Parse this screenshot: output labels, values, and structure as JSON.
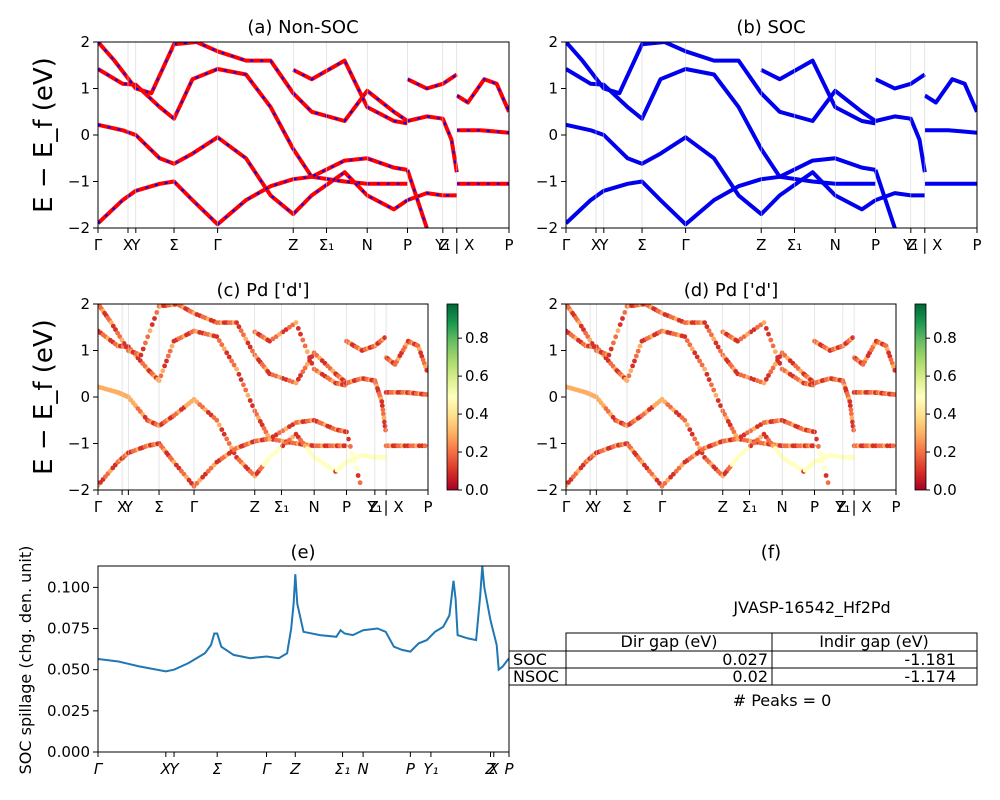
{
  "figure": {
    "ylabel_top": "E − E_f (eV)",
    "ylabel_mid": "E − E_f (eV)"
  },
  "chart_data": [
    {
      "id": "a",
      "type": "line",
      "title": "(a) Non-SOC",
      "ylim": [
        -2,
        2
      ],
      "yticks": [
        "2",
        "1",
        "0",
        "−1",
        "−2"
      ],
      "xticklabels": [
        "Γ",
        "X",
        "Y",
        "Σ",
        "Γ",
        "Z",
        "Σ₁",
        "N",
        "P",
        "Y₁",
        "Z | X",
        "P"
      ],
      "xticks_at": [
        0,
        0.073,
        0.092,
        0.185,
        0.291,
        0.475,
        0.556,
        0.655,
        0.753,
        0.839,
        0.873,
        1.0
      ],
      "series": [
        {
          "values": [
            [
              0,
              1.42
            ],
            [
              0.06,
              1.1
            ],
            [
              0.092,
              1.08
            ],
            [
              0.15,
              0.6
            ],
            [
              0.185,
              0.35
            ],
            [
              0.23,
              1.2
            ],
            [
              0.291,
              1.42
            ],
            [
              0.36,
              1.3
            ],
            [
              0.42,
              0.6
            ],
            [
              0.475,
              -0.3
            ],
            [
              0.52,
              -0.9
            ],
            [
              0.6,
              -1.0
            ],
            [
              0.655,
              -1.05
            ],
            [
              0.72,
              -1.05
            ],
            [
              0.753,
              -1.05
            ]
          ]
        },
        {
          "values": [
            [
              0,
              0.22
            ],
            [
              0.06,
              0.1
            ],
            [
              0.092,
              0.0
            ],
            [
              0.15,
              -0.5
            ],
            [
              0.185,
              -0.62
            ],
            [
              0.23,
              -0.4
            ],
            [
              0.291,
              -0.05
            ],
            [
              0.36,
              -0.5
            ],
            [
              0.42,
              -1.3
            ],
            [
              0.475,
              -1.7
            ],
            [
              0.52,
              -1.3
            ],
            [
              0.6,
              -0.8
            ],
            [
              0.655,
              -1.3
            ],
            [
              0.72,
              -1.6
            ],
            [
              0.753,
              -1.4
            ]
          ]
        },
        {
          "values": [
            [
              0,
              -1.9
            ],
            [
              0.06,
              -1.4
            ],
            [
              0.092,
              -1.2
            ],
            [
              0.15,
              -1.05
            ],
            [
              0.185,
              -1.0
            ],
            [
              0.23,
              -1.4
            ],
            [
              0.291,
              -1.92
            ],
            [
              0.36,
              -1.4
            ],
            [
              0.42,
              -1.1
            ],
            [
              0.475,
              -0.95
            ],
            [
              0.52,
              -0.9
            ],
            [
              0.6,
              -0.55
            ],
            [
              0.655,
              -0.5
            ],
            [
              0.72,
              -0.7
            ],
            [
              0.753,
              -0.75
            ]
          ]
        },
        {
          "values": [
            [
              0,
              2.0
            ],
            [
              0.04,
              1.6
            ],
            [
              0.092,
              1.0
            ],
            [
              0.13,
              0.9
            ],
            [
              0.185,
              1.95
            ],
            [
              0.24,
              2.0
            ],
            [
              0.291,
              1.8
            ],
            [
              0.36,
              1.6
            ],
            [
              0.42,
              1.6
            ],
            [
              0.475,
              0.9
            ],
            [
              0.52,
              0.5
            ],
            [
              0.6,
              0.3
            ],
            [
              0.655,
              0.95
            ],
            [
              0.72,
              0.5
            ],
            [
              0.753,
              0.3
            ]
          ]
        },
        {
          "values": [
            [
              0.475,
              1.4
            ],
            [
              0.52,
              1.2
            ],
            [
              0.6,
              1.6
            ],
            [
              0.655,
              0.6
            ],
            [
              0.72,
              0.3
            ],
            [
              0.753,
              0.25
            ]
          ]
        },
        {
          "values": [
            [
              0.873,
              0.1
            ],
            [
              0.93,
              0.1
            ],
            [
              0.96,
              0.08
            ],
            [
              1.0,
              0.05
            ]
          ]
        },
        {
          "values": [
            [
              0.873,
              -1.05
            ],
            [
              0.93,
              -1.05
            ],
            [
              1.0,
              -1.05
            ]
          ]
        },
        {
          "values": [
            [
              0.873,
              0.85
            ],
            [
              0.9,
              0.7
            ],
            [
              0.94,
              1.2
            ],
            [
              0.97,
              1.1
            ],
            [
              1.0,
              0.5
            ]
          ]
        },
        {
          "values": [
            [
              0.753,
              0.3
            ],
            [
              0.8,
              0.4
            ],
            [
              0.839,
              0.35
            ],
            [
              0.86,
              -0.1
            ],
            [
              0.873,
              -0.8
            ]
          ]
        },
        {
          "values": [
            [
              0.753,
              -1.4
            ],
            [
              0.8,
              -1.25
            ],
            [
              0.839,
              -1.3
            ],
            [
              0.873,
              -1.3
            ]
          ]
        },
        {
          "values": [
            [
              0.753,
              -0.75
            ],
            [
              0.8,
              -2.0
            ]
          ]
        },
        {
          "values": [
            [
              0.753,
              1.2
            ],
            [
              0.8,
              1.0
            ],
            [
              0.839,
              1.1
            ],
            [
              0.873,
              1.3
            ]
          ]
        }
      ]
    },
    {
      "id": "b",
      "type": "line",
      "title": "(b) SOC",
      "ylim": [
        -2,
        2
      ],
      "yticks": [
        "2",
        "1",
        "0",
        "−1",
        "−2"
      ],
      "xticklabels": [
        "Γ",
        "X",
        "Y",
        "Σ",
        "Γ",
        "Z",
        "Σ₁",
        "N",
        "P",
        "Y₁",
        "Z | X",
        "P"
      ],
      "xticks_at": [
        0,
        0.073,
        0.092,
        0.185,
        0.291,
        0.475,
        0.556,
        0.655,
        0.753,
        0.839,
        0.873,
        1.0
      ],
      "series_ref": "a"
    },
    {
      "id": "c",
      "type": "scatter",
      "title": "(c)  Pd ['d']",
      "ylim": [
        -2,
        2
      ],
      "yticks": [
        "2",
        "1",
        "0",
        "−1",
        "−2"
      ],
      "xticklabels": [
        "Γ",
        "X",
        "Y",
        "Σ",
        "Γ",
        "Z",
        "Σ₁",
        "N",
        "P",
        "Y₁",
        "Z | X",
        "P"
      ],
      "xticks_at": [
        0,
        0.073,
        0.092,
        0.185,
        0.291,
        0.475,
        0.556,
        0.655,
        0.753,
        0.839,
        0.873,
        1.0
      ],
      "colorbar_ticks": [
        "0.8",
        "0.6",
        "0.4",
        "0.2",
        "0.0"
      ],
      "series_ref": "a"
    },
    {
      "id": "d",
      "type": "scatter",
      "title": "(d) Pd ['d']",
      "ylim": [
        -2,
        2
      ],
      "yticks": [
        "2",
        "1",
        "0",
        "−1",
        "−2"
      ],
      "xticklabels": [
        "Γ",
        "X",
        "Y",
        "Σ",
        "Γ",
        "Z",
        "Σ₁",
        "N",
        "P",
        "Y₁",
        "Z | X",
        "P"
      ],
      "xticks_at": [
        0,
        0.073,
        0.092,
        0.185,
        0.291,
        0.475,
        0.556,
        0.655,
        0.753,
        0.839,
        0.873,
        1.0
      ],
      "colorbar_ticks": [
        "0.8",
        "0.6",
        "0.4",
        "0.2",
        "0.0"
      ],
      "series_ref": "a"
    },
    {
      "id": "e",
      "type": "line",
      "title": "(e)",
      "ylabel": "SOC spillage (chg. den. unit)",
      "ylim": [
        0,
        0.113
      ],
      "yticks": [
        0.0,
        0.025,
        0.05,
        0.075,
        0.1
      ],
      "ytick_labels": [
        "0.000",
        "0.025",
        "0.050",
        "0.075",
        "0.100"
      ],
      "xticklabels": [
        "Γ",
        "X",
        "Y",
        "Σ",
        "Γ",
        "Z",
        "Σ₁",
        "N",
        "P",
        "Y₁",
        "Z",
        "X",
        "P"
      ],
      "xticks_at": [
        0,
        0.165,
        0.185,
        0.29,
        0.41,
        0.48,
        0.595,
        0.645,
        0.76,
        0.81,
        0.955,
        0.963,
        1.0
      ],
      "series": [
        {
          "color": "#1f77b4",
          "values": [
            [
              0,
              0.0565
            ],
            [
              0.05,
              0.055
            ],
            [
              0.1,
              0.052
            ],
            [
              0.165,
              0.049
            ],
            [
              0.185,
              0.05
            ],
            [
              0.22,
              0.054
            ],
            [
              0.26,
              0.06
            ],
            [
              0.275,
              0.065
            ],
            [
              0.283,
              0.072
            ],
            [
              0.29,
              0.072
            ],
            [
              0.3,
              0.064
            ],
            [
              0.33,
              0.059
            ],
            [
              0.37,
              0.057
            ],
            [
              0.41,
              0.058
            ],
            [
              0.44,
              0.057
            ],
            [
              0.46,
              0.06
            ],
            [
              0.47,
              0.075
            ],
            [
              0.476,
              0.09
            ],
            [
              0.48,
              0.108
            ],
            [
              0.485,
              0.09
            ],
            [
              0.5,
              0.073
            ],
            [
              0.54,
              0.071
            ],
            [
              0.58,
              0.07
            ],
            [
              0.59,
              0.074
            ],
            [
              0.6,
              0.072
            ],
            [
              0.62,
              0.071
            ],
            [
              0.645,
              0.074
            ],
            [
              0.68,
              0.075
            ],
            [
              0.7,
              0.073
            ],
            [
              0.72,
              0.064
            ],
            [
              0.74,
              0.062
            ],
            [
              0.76,
              0.061
            ],
            [
              0.78,
              0.066
            ],
            [
              0.8,
              0.068
            ],
            [
              0.82,
              0.073
            ],
            [
              0.84,
              0.076
            ],
            [
              0.855,
              0.083
            ],
            [
              0.865,
              0.104
            ],
            [
              0.87,
              0.093
            ],
            [
              0.875,
              0.071
            ],
            [
              0.9,
              0.069
            ],
            [
              0.92,
              0.068
            ],
            [
              0.93,
              0.095
            ],
            [
              0.935,
              0.113
            ],
            [
              0.94,
              0.1
            ],
            [
              0.955,
              0.08
            ],
            [
              0.97,
              0.065
            ],
            [
              0.975,
              0.05
            ],
            [
              0.985,
              0.052
            ],
            [
              1.0,
              0.057
            ]
          ]
        }
      ]
    }
  ],
  "panel_f": {
    "title": "(f)",
    "material": "JVASP-16542_Hf2Pd",
    "table_headers": [
      "Dir gap (eV)",
      "Indir gap (eV)"
    ],
    "table_rows": [
      {
        "label": "SOC",
        "dir": "0.027",
        "indir": "-1.181"
      },
      {
        "label": "NSOC",
        "dir": "0.02",
        "indir": "-1.174"
      }
    ],
    "peaks": "# Peaks = 0"
  },
  "colors": {
    "nonsoc_line": "#ff0000",
    "nonsoc_dash": "#0000ff",
    "soc_line": "#0000ee",
    "spillage_line": "#1f77b4"
  }
}
